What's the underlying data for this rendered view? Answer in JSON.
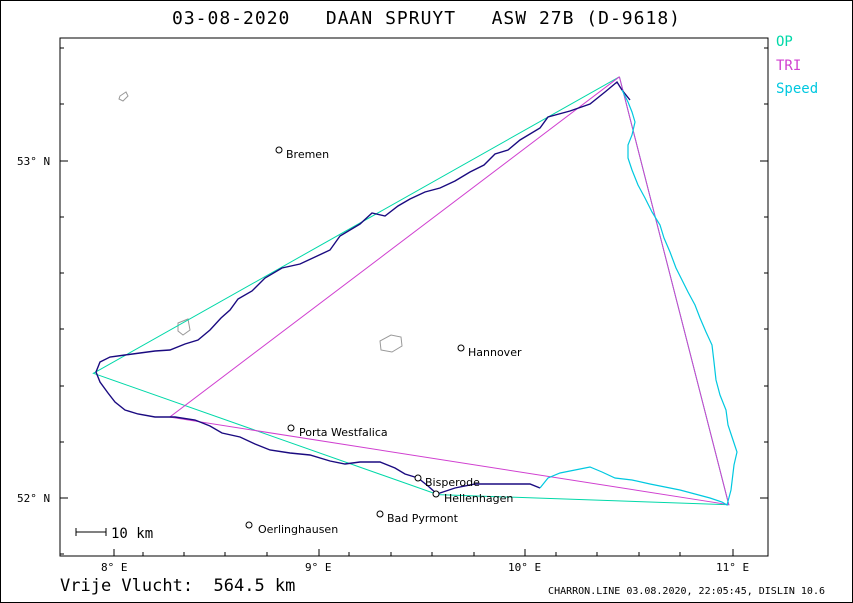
{
  "title": "03-08-2020   DAAN SPRUYT   ASW 27B (D-9618)",
  "legend": [
    {
      "label": "OP",
      "color": "#00d8a8"
    },
    {
      "label": "TRI",
      "color": "#d040d0"
    },
    {
      "label": "Speed",
      "color": "#00c8e0"
    }
  ],
  "footer_left": "Vrije Vlucht:  564.5 km",
  "footer_right": "CHARRON.LINE 03.08.2020, 22:05:45, DISLIN 10.6",
  "scale_label": "10 km",
  "axes": {
    "x_ticks": [
      "8° E",
      "9° E",
      "10° E",
      "11° E"
    ],
    "y_ticks": [
      "53° N",
      "52° N"
    ]
  },
  "places": [
    {
      "name": "Bremen"
    },
    {
      "name": "Hannover"
    },
    {
      "name": "Porta Westfalica"
    },
    {
      "name": "Bisperode"
    },
    {
      "name": "Hellenhagen"
    },
    {
      "name": "Bad Pyrmont"
    },
    {
      "name": "Oerlinghausen"
    }
  ],
  "task": {
    "op_points": [
      [
        10.45,
        53.25
      ],
      [
        7.9,
        52.37
      ],
      [
        9.57,
        52.01
      ],
      [
        10.98,
        51.98
      ],
      [
        10.45,
        53.25
      ]
    ],
    "tri_points": [
      [
        10.45,
        53.25
      ],
      [
        8.27,
        52.24
      ],
      [
        10.98,
        51.98
      ],
      [
        10.45,
        53.25
      ]
    ]
  },
  "colors": {
    "track": "#1a0a80",
    "speed": "#00c8e0",
    "op": "#00d8a8",
    "tri": "#d040d0"
  }
}
